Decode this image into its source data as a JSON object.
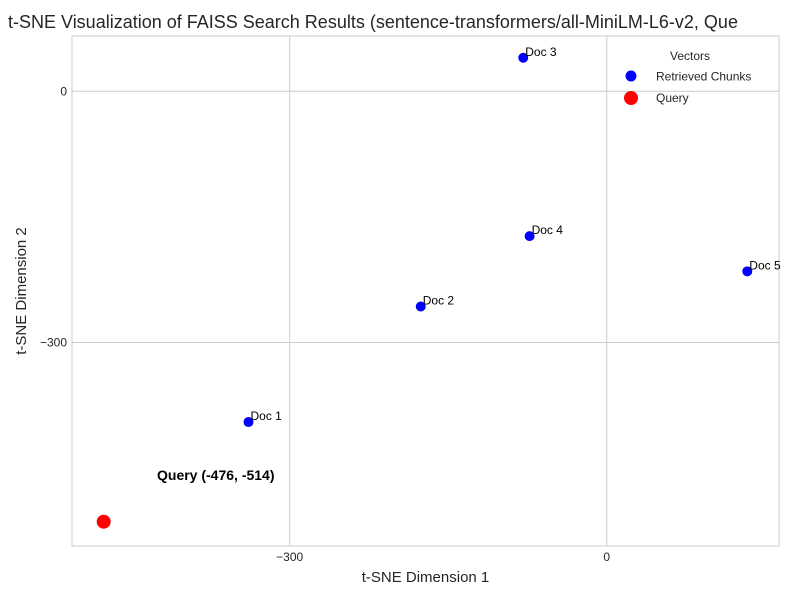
{
  "chart_data": {
    "type": "scatter",
    "title": "t-SNE Visualization of FAISS Search Results (sentence-transformers/all-MiniLM-L6-v2, Que",
    "xlabel": "t-SNE Dimension 1",
    "ylabel": "t-SNE Dimension 2",
    "xlim": [
      -506,
      163
    ],
    "ylim": [
      -543,
      66
    ],
    "xticks": [
      {
        "value": -300,
        "label": "−300"
      },
      {
        "value": 0,
        "label": "0"
      }
    ],
    "yticks": [
      {
        "value": 0,
        "label": "0"
      },
      {
        "value": -300,
        "label": "−300"
      }
    ],
    "grid": true,
    "legend": {
      "title": "Vectors",
      "position": "top-right",
      "entries": [
        {
          "label": "Retrieved Chunks",
          "color": "#0000ff"
        },
        {
          "label": "Query",
          "color": "#ff0000"
        }
      ]
    },
    "series": [
      {
        "name": "Retrieved Chunks",
        "color": "#0000ff",
        "points": [
          {
            "x": -339,
            "y": -395,
            "label": "Doc 1"
          },
          {
            "x": -176,
            "y": -257,
            "label": "Doc 2"
          },
          {
            "x": -79,
            "y": 40,
            "label": "Doc 3"
          },
          {
            "x": -73,
            "y": -173,
            "label": "Doc 4"
          },
          {
            "x": 133,
            "y": -215,
            "label": "Doc 5"
          }
        ]
      },
      {
        "name": "Query",
        "color": "#ff0000",
        "points": [
          {
            "x": -476,
            "y": -514,
            "label": ""
          }
        ]
      }
    ],
    "annotations": [
      {
        "text": "Query (-476, -514)",
        "x": -476,
        "y": -514
      }
    ]
  }
}
